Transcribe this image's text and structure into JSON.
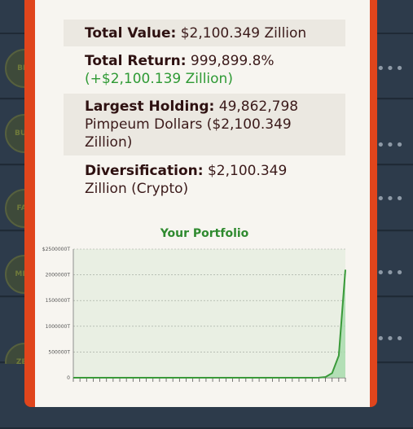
{
  "background_list": {
    "items": [
      {
        "icon": "BIO"
      },
      {
        "icon": "BUSI"
      },
      {
        "icon": "FAR"
      },
      {
        "icon": "MINI"
      },
      {
        "icon": "ZEN"
      }
    ],
    "more_glyph": "•••"
  },
  "summary": {
    "total_value_label": "Total Value:",
    "total_value": "$2,100.349 Zillion",
    "total_return_label": "Total Return:",
    "total_return": "999,899.8%",
    "total_return_change": "(+$2,100.139 Zillion)",
    "largest_holding_label": "Largest Holding:",
    "largest_holding": "49,862,798 Pimpeum Dollars ($2,100.349 Zillion)",
    "diversification_label": "Diversification:",
    "diversification": "$2,100.349 Zillion (Crypto)"
  },
  "colors": {
    "frame": "#e0451c",
    "line": "#3a9a3a",
    "fill": "#a9dcae"
  },
  "chart_data": {
    "type": "area",
    "title": "Your Portfolio",
    "y_ticks": [
      "0",
      "500000T",
      "1000000T",
      "1500000T",
      "2000000T",
      "$2500000T"
    ],
    "y_tick_values": [
      0,
      500000,
      1000000,
      1500000,
      2000000,
      2500000
    ],
    "ylim": [
      0,
      2500000
    ],
    "x_tick_count": 42,
    "x": [
      0,
      1,
      2,
      3,
      4,
      5,
      6,
      7,
      8,
      9,
      10,
      11,
      12,
      13,
      14,
      15,
      16,
      17,
      18,
      19,
      20,
      21,
      22,
      23,
      24,
      25,
      26,
      27,
      28,
      29,
      30,
      31,
      32,
      33,
      34,
      35,
      36,
      37,
      38,
      39,
      40,
      41
    ],
    "values": [
      0,
      0,
      0,
      0,
      0,
      0,
      0,
      0,
      0,
      0,
      0,
      0,
      0,
      0,
      0,
      0,
      0,
      0,
      0,
      0,
      0,
      0,
      0,
      0,
      0,
      0,
      0,
      0,
      0,
      0,
      0,
      0,
      0,
      0,
      0,
      0,
      0,
      2000,
      15000,
      90000,
      430000,
      2100349
    ],
    "grid": true
  }
}
